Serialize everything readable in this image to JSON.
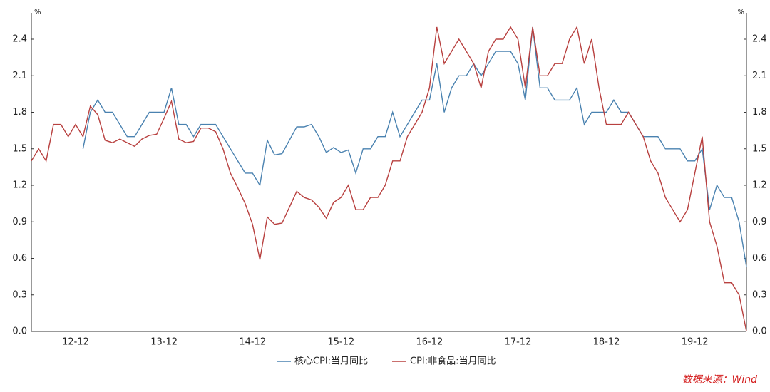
{
  "chart_data": {
    "type": "line",
    "y_unit": "%",
    "y2_unit": "%",
    "source": "数据来源：Wind",
    "categories": [
      null,
      null,
      null,
      null,
      null,
      null,
      "12-12",
      null,
      null,
      null,
      null,
      null,
      null,
      null,
      null,
      null,
      null,
      null,
      "13-12",
      null,
      null,
      null,
      null,
      null,
      null,
      null,
      null,
      null,
      null,
      null,
      "14-12",
      null,
      null,
      null,
      null,
      null,
      null,
      null,
      null,
      null,
      null,
      null,
      "15-12",
      null,
      null,
      null,
      null,
      null,
      null,
      null,
      null,
      null,
      null,
      null,
      "16-12",
      null,
      null,
      null,
      null,
      null,
      null,
      null,
      null,
      null,
      null,
      null,
      "17-12",
      null,
      null,
      null,
      null,
      null,
      null,
      null,
      null,
      null,
      null,
      null,
      "18-12",
      null,
      null,
      null,
      null,
      null,
      null,
      null,
      null,
      null,
      null,
      null,
      "19-12",
      null,
      null,
      null,
      null,
      null,
      null,
      null
    ],
    "series": [
      {
        "name": "核心CPI:当月同比",
        "color": "#4a82b0",
        "values": [
          null,
          null,
          null,
          null,
          null,
          null,
          null,
          1.5,
          1.8,
          1.9,
          1.8,
          1.8,
          1.7,
          1.6,
          1.6,
          1.7,
          1.8,
          1.8,
          1.8,
          2.0,
          1.7,
          1.7,
          1.6,
          1.7,
          1.7,
          1.7,
          1.6,
          1.5,
          1.4,
          1.3,
          1.3,
          1.2,
          1.57,
          1.45,
          1.46,
          1.57,
          1.68,
          1.68,
          1.7,
          1.6,
          1.47,
          1.51,
          1.47,
          1.49,
          1.3,
          1.5,
          1.5,
          1.6,
          1.6,
          1.8,
          1.6,
          1.7,
          1.8,
          1.9,
          1.9,
          2.2,
          1.8,
          2.0,
          2.1,
          2.1,
          2.2,
          2.1,
          2.2,
          2.3,
          2.3,
          2.3,
          2.2,
          1.9,
          2.5,
          2.0,
          2.0,
          1.9,
          1.9,
          1.9,
          2.0,
          1.7,
          1.8,
          1.8,
          1.8,
          1.9,
          1.8,
          1.8,
          1.7,
          1.6,
          1.6,
          1.6,
          1.5,
          1.5,
          1.5,
          1.4,
          1.4,
          1.5,
          1.0,
          1.2,
          1.1,
          1.1,
          0.9,
          0.53
        ]
      },
      {
        "name": "CPI:非食品:当月同比",
        "color": "#b8403f",
        "values": [
          1.4,
          1.5,
          1.4,
          1.7,
          1.7,
          1.6,
          1.7,
          1.6,
          1.85,
          1.78,
          1.57,
          1.55,
          1.58,
          1.55,
          1.52,
          1.58,
          1.61,
          1.62,
          1.75,
          1.89,
          1.58,
          1.55,
          1.56,
          1.67,
          1.67,
          1.64,
          1.5,
          1.3,
          1.18,
          1.05,
          0.88,
          0.59,
          0.94,
          0.88,
          0.89,
          1.02,
          1.15,
          1.1,
          1.08,
          1.02,
          0.93,
          1.06,
          1.1,
          1.2,
          1.0,
          1.0,
          1.1,
          1.1,
          1.2,
          1.4,
          1.4,
          1.6,
          1.7,
          1.8,
          2.0,
          2.5,
          2.2,
          2.3,
          2.4,
          2.3,
          2.2,
          2.0,
          2.3,
          2.4,
          2.4,
          2.5,
          2.4,
          2.0,
          2.5,
          2.1,
          2.1,
          2.2,
          2.2,
          2.4,
          2.5,
          2.2,
          2.4,
          2.0,
          1.7,
          1.7,
          1.7,
          1.8,
          1.7,
          1.6,
          1.4,
          1.3,
          1.1,
          1.0,
          0.9,
          1.0,
          1.3,
          1.6,
          0.9,
          0.7,
          0.4,
          0.4,
          0.3,
          0.0
        ]
      }
    ],
    "ylim": [
      0,
      2.6
    ],
    "yticks": [
      {
        "value": 0,
        "label": "0.0"
      },
      0.3,
      0.6,
      0.9,
      1.2,
      1.5,
      1.8,
      2.1,
      2.4
    ],
    "y2lim": [
      0,
      2.6
    ],
    "y2ticks": [
      {
        "value": 0,
        "label": "0.0"
      },
      0.3,
      0.6,
      0.9,
      1.2,
      1.5,
      1.8,
      2.1,
      2.4
    ],
    "grid": false
  }
}
